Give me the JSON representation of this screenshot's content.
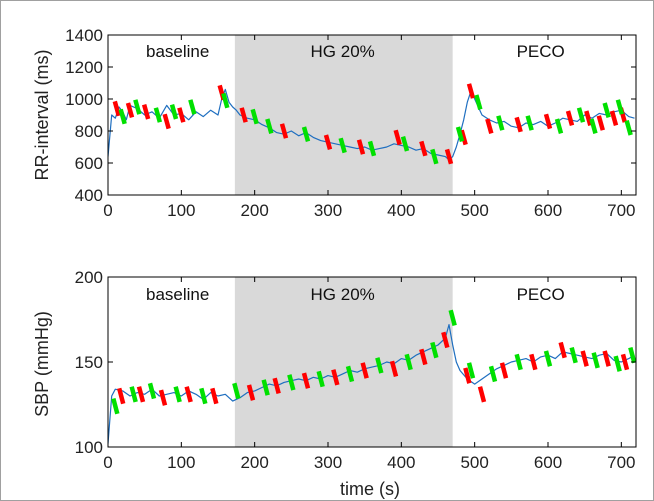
{
  "chart_data": [
    {
      "type": "line",
      "ylabel": "RR-interval (ms)",
      "xlabel": "",
      "xlim": [
        0,
        720
      ],
      "ylim": [
        400,
        1400
      ],
      "xticks": [
        0,
        100,
        200,
        300,
        400,
        500,
        600,
        700
      ],
      "yticks": [
        400,
        600,
        800,
        1000,
        1200,
        1400
      ],
      "shaded_region": {
        "x0": 173,
        "x1": 470,
        "color": "#d9d9d9"
      },
      "phase_labels": [
        {
          "text": "baseline",
          "x": 95,
          "y": 1300
        },
        {
          "text": "HG 20%",
          "x": 320,
          "y": 1300
        },
        {
          "text": "PECO",
          "x": 590,
          "y": 1300
        }
      ],
      "series": [
        {
          "color": "#1f6fc0",
          "x": [
            0,
            5,
            10,
            15,
            20,
            25,
            30,
            40,
            50,
            60,
            70,
            80,
            90,
            100,
            110,
            120,
            130,
            140,
            150,
            155,
            160,
            165,
            170,
            175,
            180,
            190,
            200,
            210,
            220,
            230,
            240,
            250,
            260,
            270,
            280,
            290,
            300,
            310,
            320,
            330,
            340,
            350,
            360,
            370,
            380,
            390,
            400,
            410,
            420,
            430,
            440,
            450,
            460,
            465,
            470,
            475,
            480,
            485,
            490,
            495,
            500,
            505,
            510,
            520,
            530,
            540,
            550,
            560,
            570,
            580,
            590,
            600,
            610,
            620,
            630,
            640,
            650,
            660,
            670,
            680,
            690,
            700,
            710,
            718
          ],
          "y": [
            640,
            900,
            880,
            950,
            920,
            870,
            960,
            940,
            900,
            920,
            880,
            960,
            900,
            910,
            870,
            920,
            890,
            930,
            900,
            1000,
            1060,
            980,
            950,
            930,
            900,
            880,
            870,
            840,
            820,
            790,
            780,
            800,
            770,
            790,
            760,
            740,
            730,
            720,
            710,
            700,
            690,
            700,
            680,
            690,
            700,
            720,
            710,
            700,
            680,
            690,
            660,
            650,
            640,
            620,
            640,
            700,
            780,
            870,
            980,
            1050,
            1000,
            950,
            900,
            870,
            850,
            860,
            830,
            820,
            850,
            840,
            860,
            830,
            850,
            880,
            870,
            860,
            900,
            880,
            910,
            900,
            920,
            930,
            890,
            880
          ]
        },
        {
          "color": "#ff0000",
          "x": [
            12,
            30,
            52,
            80,
            100,
            155,
            185,
            240,
            300,
            345,
            395,
            430,
            465,
            485,
            495,
            520,
            560,
            600,
            630,
            655,
            672,
            690,
            702
          ],
          "y": [
            940,
            930,
            920,
            860,
            900,
            1040,
            900,
            800,
            730,
            700,
            760,
            690,
            640,
            760,
            1050,
            830,
            840,
            860,
            880,
            880,
            850,
            880,
            900
          ]
        },
        {
          "color": "#00e000",
          "x": [
            20,
            40,
            68,
            90,
            115,
            160,
            200,
            220,
            270,
            320,
            360,
            405,
            445,
            480,
            505,
            535,
            575,
            615,
            645,
            662,
            680,
            698,
            710
          ],
          "y": [
            890,
            950,
            900,
            920,
            950,
            990,
            890,
            830,
            780,
            710,
            690,
            720,
            640,
            780,
            980,
            850,
            850,
            830,
            900,
            830,
            930,
            950,
            820
          ]
        }
      ]
    },
    {
      "type": "line",
      "ylabel": "SBP (mmHg)",
      "xlabel": "time (s)",
      "xlim": [
        0,
        720
      ],
      "ylim": [
        100,
        200
      ],
      "xticks": [
        0,
        100,
        200,
        300,
        400,
        500,
        600,
        700
      ],
      "yticks": [
        100,
        150,
        200
      ],
      "shaded_region": {
        "x0": 173,
        "x1": 470,
        "color": "#d9d9d9"
      },
      "phase_labels": [
        {
          "text": "baseline",
          "x": 95,
          "y": 190
        },
        {
          "text": "HG 20%",
          "x": 320,
          "y": 190
        },
        {
          "text": "PECO",
          "x": 590,
          "y": 190
        }
      ],
      "series": [
        {
          "color": "#1f6fc0",
          "x": [
            0,
            5,
            10,
            20,
            30,
            40,
            50,
            60,
            70,
            80,
            90,
            100,
            110,
            120,
            130,
            140,
            150,
            160,
            170,
            180,
            190,
            200,
            210,
            220,
            230,
            240,
            250,
            260,
            270,
            280,
            290,
            300,
            310,
            320,
            330,
            340,
            350,
            360,
            370,
            380,
            390,
            400,
            410,
            420,
            430,
            440,
            450,
            460,
            465,
            470,
            475,
            480,
            490,
            500,
            510,
            520,
            530,
            540,
            550,
            560,
            570,
            580,
            590,
            600,
            610,
            620,
            630,
            640,
            650,
            660,
            670,
            680,
            690,
            700,
            710,
            718
          ],
          "y": [
            102,
            130,
            134,
            133,
            130,
            132,
            131,
            134,
            130,
            131,
            132,
            130,
            133,
            131,
            128,
            132,
            130,
            131,
            127,
            129,
            132,
            133,
            135,
            137,
            136,
            138,
            139,
            140,
            139,
            141,
            140,
            142,
            141,
            143,
            145,
            144,
            146,
            147,
            148,
            150,
            149,
            152,
            151,
            154,
            156,
            158,
            160,
            164,
            172,
            160,
            150,
            145,
            140,
            137,
            140,
            143,
            146,
            148,
            150,
            151,
            152,
            150,
            153,
            154,
            152,
            156,
            155,
            154,
            153,
            152,
            154,
            155,
            151,
            150,
            152,
            154
          ]
        },
        {
          "color": "#ff0000",
          "x": [
            18,
            45,
            75,
            110,
            145,
            195,
            230,
            270,
            310,
            350,
            390,
            430,
            460,
            490,
            510,
            540,
            580,
            620,
            650,
            680,
            705
          ],
          "y": [
            130,
            131,
            129,
            131,
            130,
            132,
            136,
            139,
            141,
            145,
            146,
            153,
            163,
            142,
            131,
            145,
            150,
            157,
            152,
            152,
            150
          ]
        },
        {
          "color": "#00e000",
          "x": [
            10,
            35,
            60,
            95,
            130,
            175,
            215,
            250,
            290,
            330,
            370,
            410,
            445,
            470,
            495,
            525,
            560,
            600,
            635,
            665,
            695,
            715
          ],
          "y": [
            124,
            131,
            133,
            131,
            130,
            133,
            135,
            138,
            140,
            143,
            148,
            150,
            157,
            176,
            145,
            143,
            150,
            152,
            154,
            151,
            149,
            154
          ]
        }
      ]
    }
  ]
}
